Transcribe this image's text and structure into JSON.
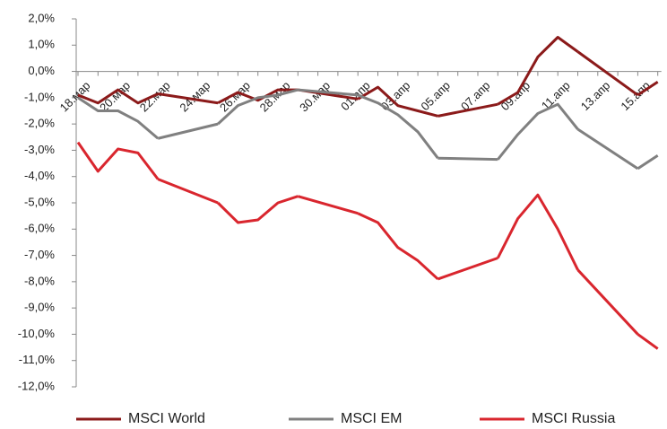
{
  "chart_data": {
    "type": "line",
    "categories": [
      "18.мар",
      null,
      "20.мар",
      null,
      "22.мар",
      null,
      "24.мар",
      null,
      "26.мар",
      null,
      "28.мар",
      null,
      "30.мар",
      null,
      "01.апр",
      null,
      "03.апр",
      null,
      "05.апр",
      null,
      "07.апр",
      null,
      "09.апр",
      null,
      "11.апр",
      null,
      "13.апр",
      null,
      "15.апр",
      null
    ],
    "series": [
      {
        "name": "MSCI World",
        "color": "#8b1a1a",
        "values": [
          -0.9,
          -1.2,
          -0.7,
          -1.2,
          -0.85,
          null,
          null,
          -1.2,
          -0.8,
          -1.1,
          -0.7,
          -0.7,
          null,
          null,
          -1.05,
          -0.6,
          -1.3,
          -1.5,
          -1.7,
          null,
          null,
          -1.25,
          -0.8,
          0.55,
          1.3,
          0.75,
          null,
          null,
          -0.9,
          -0.4
        ]
      },
      {
        "name": "MSCI EM",
        "color": "#808080",
        "values": [
          -1.0,
          -1.5,
          -1.5,
          -1.9,
          -2.55,
          null,
          null,
          -2.0,
          -1.3,
          -1.0,
          -0.9,
          -0.7,
          null,
          null,
          -0.9,
          -1.2,
          -1.65,
          -2.3,
          -3.3,
          null,
          null,
          -3.35,
          -2.4,
          -1.6,
          -1.25,
          -2.2,
          null,
          null,
          -3.7,
          -3.2
        ]
      },
      {
        "name": "MSCI Russia",
        "color": "#d9262e",
        "values": [
          -2.7,
          -3.8,
          -2.95,
          -3.1,
          -4.1,
          null,
          null,
          -5.0,
          -5.75,
          -5.65,
          -5.0,
          -4.75,
          null,
          null,
          -5.4,
          -5.75,
          -6.7,
          -7.2,
          -7.9,
          null,
          null,
          -7.1,
          -5.6,
          -4.7,
          -6.0,
          -7.55,
          null,
          null,
          -10.0,
          -10.55
        ]
      }
    ],
    "ylim": [
      -12,
      2
    ],
    "yticks": [
      {
        "value": 2,
        "label": "2,0%"
      },
      {
        "value": 1,
        "label": "1,0%"
      },
      {
        "value": 0,
        "label": "0,0%"
      },
      {
        "value": -1,
        "label": "-1,0%"
      },
      {
        "value": -2,
        "label": "-2,0%"
      },
      {
        "value": -3,
        "label": "-3,0%"
      },
      {
        "value": -4,
        "label": "-4,0%"
      },
      {
        "value": -5,
        "label": "-5,0%"
      },
      {
        "value": -6,
        "label": "-6,0%"
      },
      {
        "value": -7,
        "label": "-7,0%"
      },
      {
        "value": -8,
        "label": "-8,0%"
      },
      {
        "value": -9,
        "label": "-9,0%"
      },
      {
        "value": -10,
        "label": "-10,0%"
      },
      {
        "value": -11,
        "label": "-11,0%"
      },
      {
        "value": -12,
        "label": "-12,0%"
      }
    ],
    "legend": "bottom"
  }
}
